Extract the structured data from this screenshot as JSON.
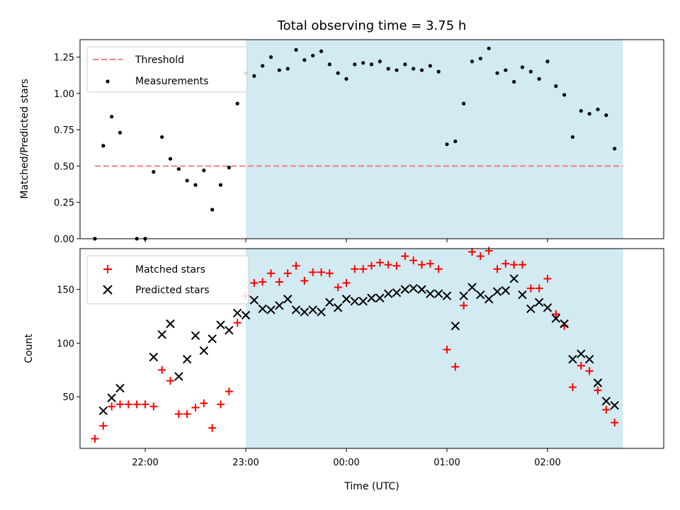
{
  "chart_data": [
    {
      "type": "scatter",
      "title": "Total observing time = 3.75 h",
      "ylabel": "Matched/Predicted stars",
      "xlabel": "",
      "ylim": [
        0,
        1.37
      ],
      "yticks": [
        "0.00",
        "0.25",
        "0.50",
        "0.75",
        "1.00",
        "1.25"
      ],
      "yticks_values": [
        0,
        0.25,
        0.5,
        0.75,
        1.0,
        1.25
      ],
      "shaded_interval": [
        "23:00",
        "02:45"
      ],
      "shade_color": "#add8e6",
      "threshold": {
        "name": "Threshold",
        "value": 0.5,
        "x_range": [
          "21:30",
          "02:45"
        ],
        "color": "#f08080"
      },
      "series": [
        {
          "name": "Measurements",
          "color": "#000000",
          "x": [
            "21:30",
            "21:35",
            "21:40",
            "21:45",
            "21:50",
            "21:55",
            "22:00",
            "22:05",
            "22:10",
            "22:15",
            "22:20",
            "22:25",
            "22:30",
            "22:35",
            "22:40",
            "22:45",
            "22:50",
            "22:55",
            "23:00",
            "23:05",
            "23:10",
            "23:15",
            "23:20",
            "23:25",
            "23:30",
            "23:35",
            "23:40",
            "23:45",
            "23:50",
            "23:55",
            "00:00",
            "00:05",
            "00:10",
            "00:15",
            "00:20",
            "00:25",
            "00:30",
            "00:35",
            "00:40",
            "00:45",
            "00:50",
            "00:55",
            "01:00",
            "01:05",
            "01:10",
            "01:15",
            "01:20",
            "01:25",
            "01:30",
            "01:35",
            "01:40",
            "01:45",
            "01:50",
            "01:55",
            "02:00",
            "02:05",
            "02:10",
            "02:15",
            "02:20",
            "02:25",
            "02:30",
            "02:35",
            "02:40",
            "02:45"
          ],
          "values": [
            0.0,
            0.64,
            0.84,
            0.73,
            null,
            0.0,
            0.0,
            0.46,
            0.7,
            0.55,
            0.48,
            0.4,
            0.37,
            0.47,
            0.2,
            0.37,
            0.49,
            0.93,
            1.14,
            1.12,
            1.19,
            1.25,
            1.16,
            1.17,
            1.3,
            1.23,
            1.26,
            1.29,
            1.2,
            1.14,
            1.1,
            1.2,
            1.21,
            1.2,
            1.22,
            1.17,
            1.16,
            1.2,
            1.17,
            1.16,
            1.19,
            1.15,
            0.65,
            0.67,
            0.93,
            1.22,
            1.24,
            1.31,
            1.14,
            1.16,
            1.08,
            1.18,
            1.15,
            1.1,
            1.22,
            1.05,
            0.99,
            0.7,
            0.88,
            0.86,
            0.89,
            0.85,
            0.62,
            null
          ]
        }
      ]
    },
    {
      "type": "scatter",
      "title": "",
      "xlabel": "Time (UTC)",
      "ylabel": "Count",
      "ylim": [
        2,
        188
      ],
      "yticks": [
        "50",
        "100",
        "150"
      ],
      "yticks_values": [
        50,
        100,
        150
      ],
      "xticks": [
        "22:00",
        "23:00",
        "00:00",
        "01:00",
        "02:00"
      ],
      "shaded_interval": [
        "23:00",
        "02:45"
      ],
      "shade_color": "#add8e6",
      "series": [
        {
          "name": "Matched stars",
          "marker": "+",
          "color": "#ff0000",
          "x": [
            "21:30",
            "21:35",
            "21:40",
            "21:45",
            "21:50",
            "21:55",
            "22:00",
            "22:05",
            "22:10",
            "22:15",
            "22:20",
            "22:25",
            "22:30",
            "22:35",
            "22:40",
            "22:45",
            "22:50",
            "22:55",
            "23:00",
            "23:05",
            "23:10",
            "23:15",
            "23:20",
            "23:25",
            "23:30",
            "23:35",
            "23:40",
            "23:45",
            "23:50",
            "23:55",
            "00:00",
            "00:05",
            "00:10",
            "00:15",
            "00:20",
            "00:25",
            "00:30",
            "00:35",
            "00:40",
            "00:45",
            "00:50",
            "00:55",
            "01:00",
            "01:05",
            "01:10",
            "01:15",
            "01:20",
            "01:25",
            "01:30",
            "01:35",
            "01:40",
            "01:45",
            "01:50",
            "01:55",
            "02:00",
            "02:05",
            "02:10",
            "02:15",
            "02:20",
            "02:25",
            "02:30",
            "02:35",
            "02:40",
            "02:45"
          ],
          "values": [
            11,
            23,
            41,
            43,
            43,
            43,
            43,
            41,
            75,
            65,
            34,
            34,
            40,
            44,
            21,
            43,
            55,
            119,
            144,
            156,
            157,
            165,
            157,
            165,
            172,
            158,
            166,
            166,
            165,
            152,
            156,
            169,
            169,
            172,
            175,
            173,
            172,
            181,
            177,
            173,
            174,
            169,
            94,
            78,
            135,
            185,
            181,
            186,
            169,
            174,
            173,
            173,
            151,
            151,
            160,
            127,
            116,
            59,
            79,
            74,
            56,
            38,
            26,
            null
          ]
        },
        {
          "name": "Predicted stars",
          "marker": "x",
          "color": "#000000",
          "x": [
            "21:35",
            "21:40",
            "21:45",
            "22:00",
            "22:05",
            "22:10",
            "22:15",
            "22:20",
            "22:25",
            "22:30",
            "22:35",
            "22:40",
            "22:45",
            "22:50",
            "22:55",
            "23:00",
            "23:05",
            "23:10",
            "23:15",
            "23:20",
            "23:25",
            "23:30",
            "23:35",
            "23:40",
            "23:45",
            "23:50",
            "23:55",
            "00:00",
            "00:05",
            "00:10",
            "00:15",
            "00:20",
            "00:25",
            "00:30",
            "00:35",
            "00:40",
            "00:45",
            "00:50",
            "00:55",
            "01:00",
            "01:05",
            "01:10",
            "01:15",
            "01:20",
            "01:25",
            "01:30",
            "01:35",
            "01:40",
            "01:45",
            "01:50",
            "01:55",
            "02:00",
            "02:05",
            "02:10",
            "02:15",
            "02:20",
            "02:25",
            "02:30",
            "02:35",
            "02:40",
            "02:45"
          ],
          "values": [
            37,
            49,
            58,
            null,
            87,
            108,
            118,
            69,
            85,
            107,
            93,
            104,
            117,
            112,
            128,
            126,
            140,
            132,
            131,
            135,
            141,
            131,
            129,
            131,
            129,
            138,
            133,
            141,
            139,
            139,
            142,
            142,
            146,
            147,
            150,
            151,
            150,
            146,
            146,
            144,
            116,
            144,
            152,
            145,
            141,
            148,
            149,
            160,
            145,
            132,
            138,
            133,
            123,
            118,
            85,
            90,
            85,
            63,
            46,
            42,
            null
          ]
        }
      ]
    }
  ],
  "legend_top": [
    "Threshold",
    "Measurements"
  ],
  "legend_bottom": [
    "Matched stars",
    "Predicted stars"
  ]
}
